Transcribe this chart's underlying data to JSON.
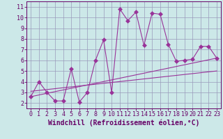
{
  "xlabel": "Windchill (Refroidissement éolien,°C)",
  "x_data": [
    0,
    1,
    2,
    3,
    4,
    5,
    6,
    7,
    8,
    9,
    10,
    11,
    12,
    13,
    14,
    15,
    16,
    17,
    18,
    19,
    20,
    21,
    22,
    23
  ],
  "y_data": [
    2.6,
    4.0,
    3.0,
    2.2,
    2.2,
    5.2,
    2.1,
    3.0,
    6.0,
    7.9,
    3.0,
    10.8,
    9.7,
    10.5,
    7.4,
    10.4,
    10.3,
    7.5,
    5.9,
    6.0,
    6.1,
    7.3,
    7.3,
    6.2
  ],
  "line_color": "#993399",
  "line2_x": [
    0,
    23
  ],
  "line2_y": [
    2.6,
    6.2
  ],
  "line3_x": [
    0,
    23
  ],
  "line3_y": [
    3.1,
    5.0
  ],
  "bg_color": "#cce8e8",
  "grid_color": "#9999bb",
  "xlim": [
    -0.5,
    23.5
  ],
  "ylim": [
    1.5,
    11.5
  ],
  "yticks": [
    2,
    3,
    4,
    5,
    6,
    7,
    8,
    9,
    10,
    11
  ],
  "xticks": [
    0,
    1,
    2,
    3,
    4,
    5,
    6,
    7,
    8,
    9,
    10,
    11,
    12,
    13,
    14,
    15,
    16,
    17,
    18,
    19,
    20,
    21,
    22,
    23
  ],
  "tick_fontsize": 6,
  "xlabel_fontsize": 7,
  "markersize": 3,
  "linewidth": 0.8
}
